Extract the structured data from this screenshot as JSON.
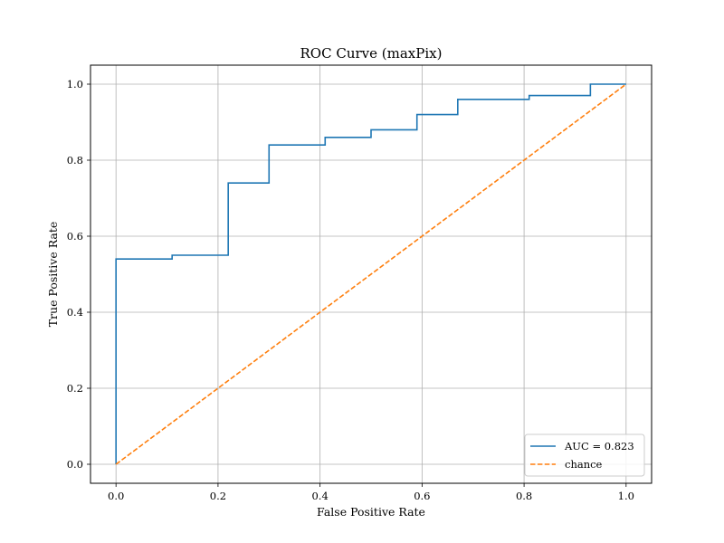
{
  "chart_data": {
    "type": "line",
    "title": "ROC Curve (maxPix)",
    "xlabel": "False Positive Rate",
    "ylabel": "True Positive Rate",
    "xlim": [
      -0.05,
      1.05
    ],
    "ylim": [
      -0.05,
      1.05
    ],
    "xticks": [
      0.0,
      0.2,
      0.4,
      0.6,
      0.8,
      1.0
    ],
    "yticks": [
      0.0,
      0.2,
      0.4,
      0.6,
      0.8,
      1.0
    ],
    "xtick_labels": [
      "0.0",
      "0.2",
      "0.4",
      "0.6",
      "0.8",
      "1.0"
    ],
    "ytick_labels": [
      "0.0",
      "0.2",
      "0.4",
      "0.6",
      "0.8",
      "1.0"
    ],
    "grid": true,
    "legend_position": "lower right",
    "series": [
      {
        "name": "AUC = 0.823",
        "color": "#1f77b4",
        "style": "solid",
        "x": [
          0.0,
          0.0,
          0.11,
          0.11,
          0.22,
          0.22,
          0.3,
          0.3,
          0.41,
          0.41,
          0.5,
          0.5,
          0.59,
          0.59,
          0.67,
          0.67,
          0.81,
          0.81,
          0.93,
          0.93,
          1.0
        ],
        "y": [
          0.0,
          0.54,
          0.54,
          0.55,
          0.55,
          0.74,
          0.74,
          0.84,
          0.84,
          0.86,
          0.86,
          0.88,
          0.88,
          0.92,
          0.92,
          0.96,
          0.96,
          0.97,
          0.97,
          1.0,
          1.0
        ]
      },
      {
        "name": "chance",
        "color": "#ff7f0e",
        "style": "dashed",
        "x": [
          0.0,
          1.0
        ],
        "y": [
          0.0,
          1.0
        ]
      }
    ]
  }
}
